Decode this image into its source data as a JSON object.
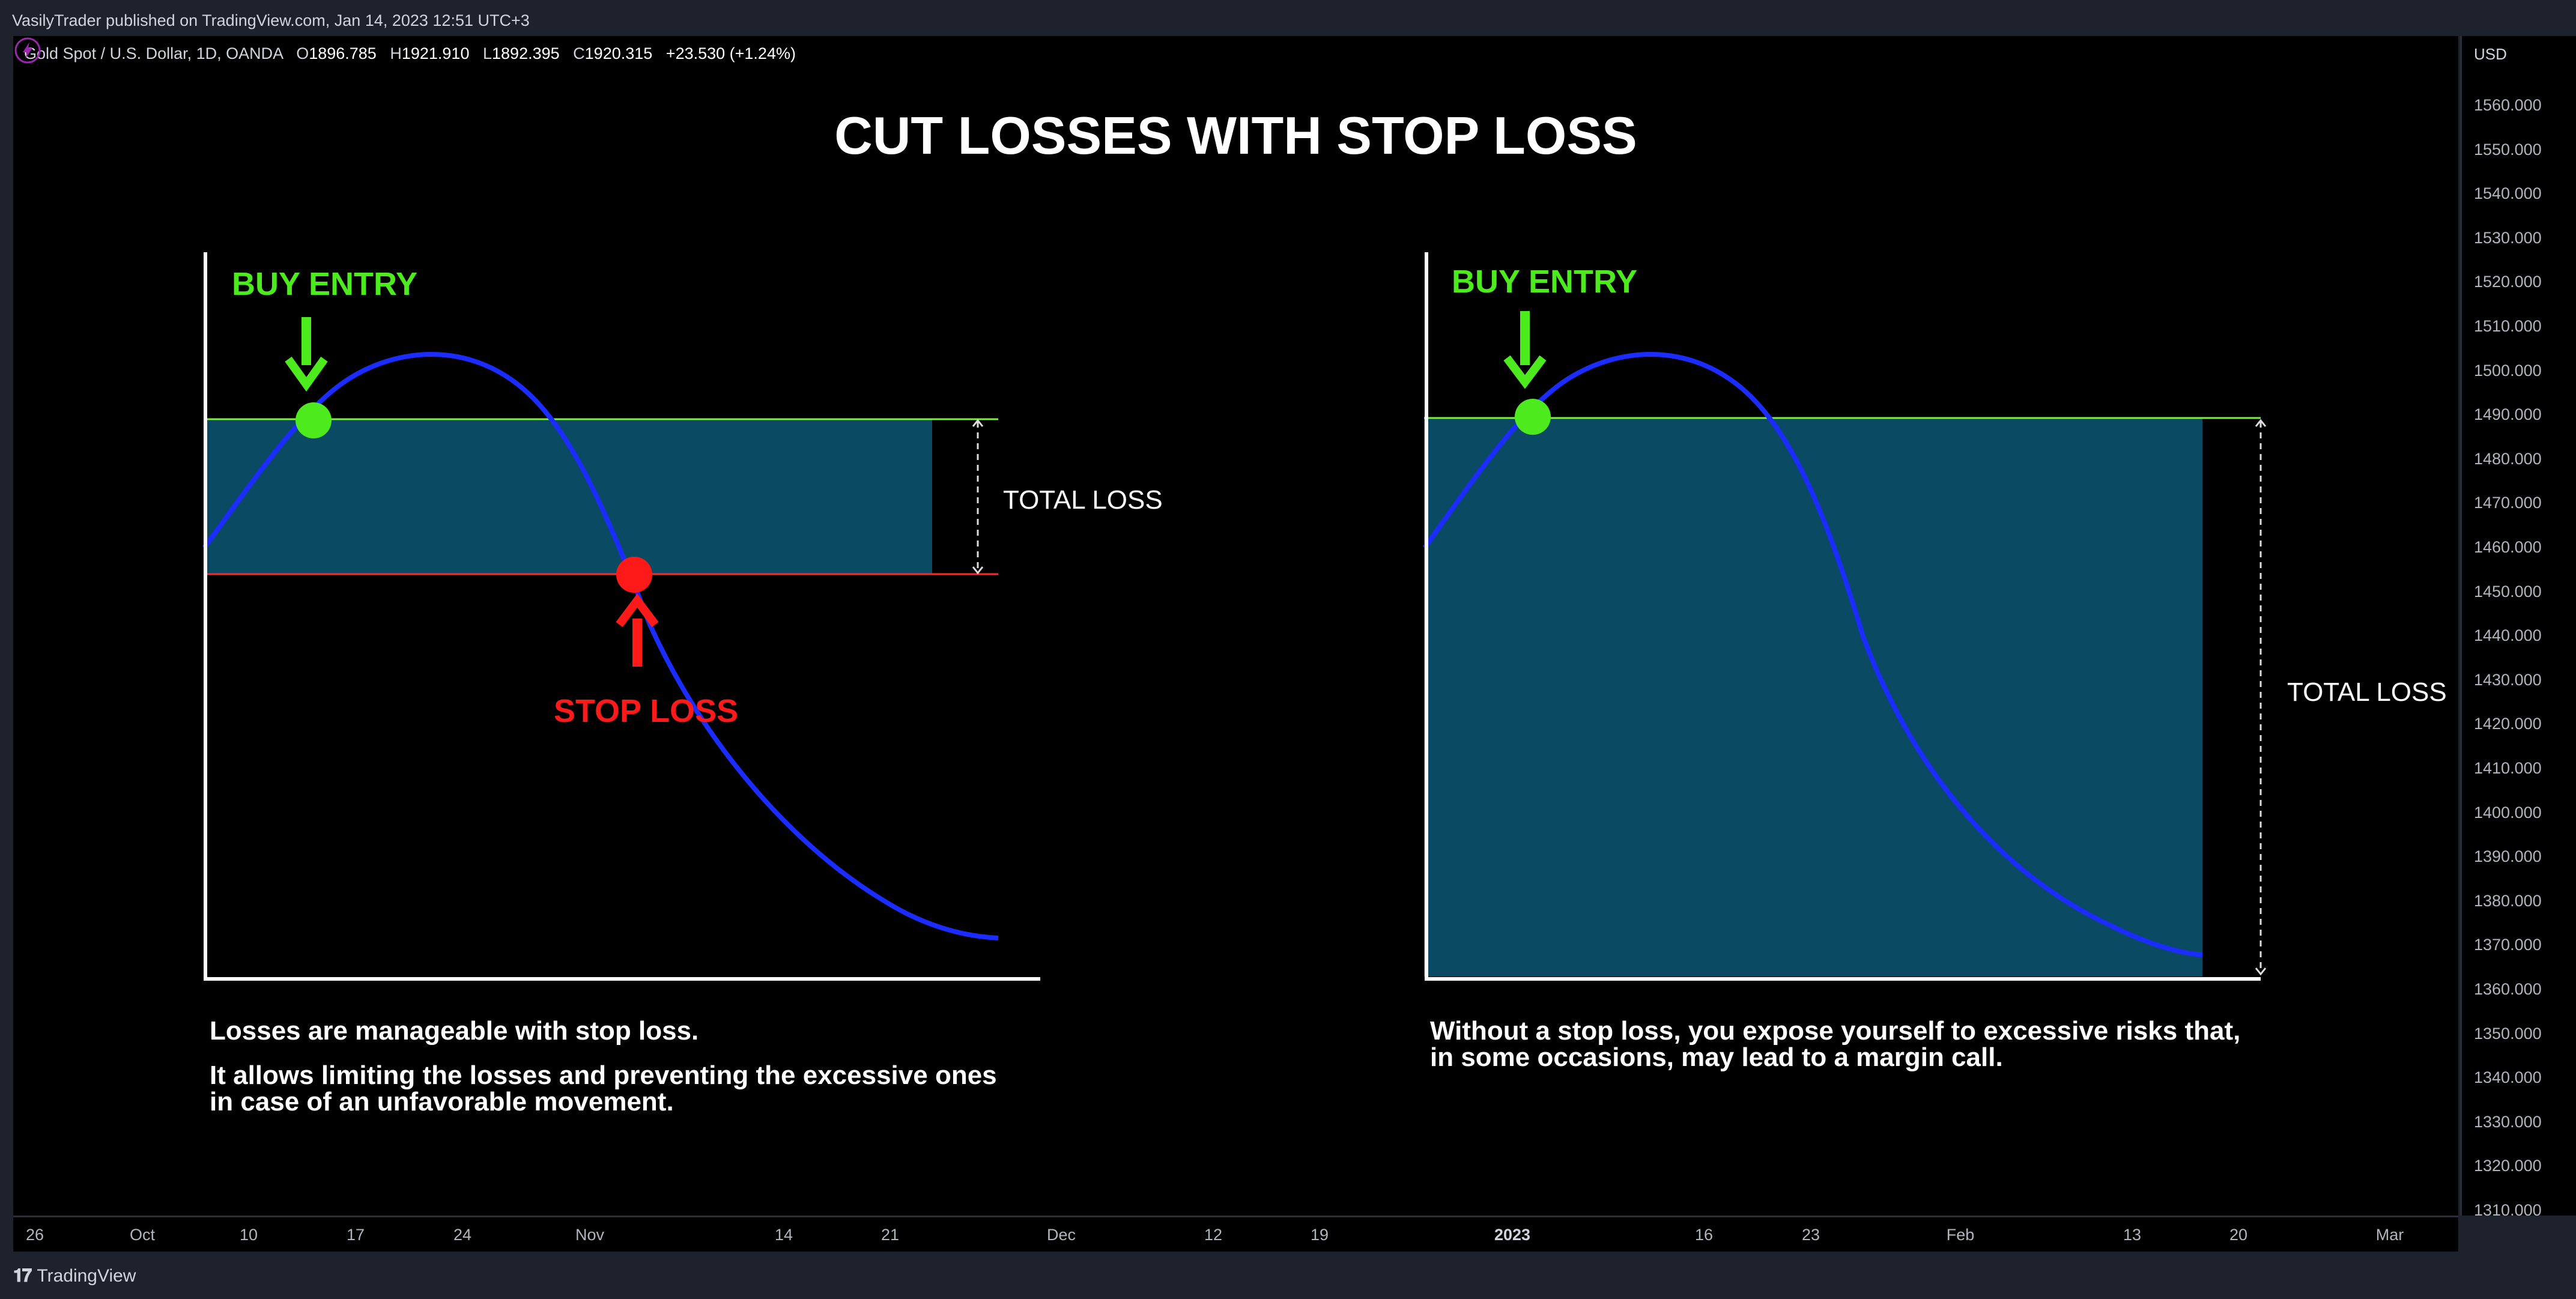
{
  "publish_line": "VasilyTrader published on TradingView.com, Jan 14, 2023 12:51 UTC+3",
  "legend": {
    "symbol": "Gold Spot / U.S. Dollar, 1D, OANDA",
    "o_label": "O",
    "o": "1896.785",
    "h_label": "H",
    "h": "1921.910",
    "l_label": "L",
    "l": "1892.395",
    "c_label": "C",
    "c": "1920.315",
    "change": "+23.530 (+1.24%)"
  },
  "title": "CUT LOSSES WITH STOP LOSS",
  "left_panel": {
    "buy_label": "BUY ENTRY",
    "stop_label": "STOP LOSS",
    "total_loss": "TOTAL LOSS",
    "caption_line1": "Losses are manageable with stop loss.",
    "caption_line2": "It allows limiting the losses and preventing the excessive ones",
    "caption_line3": "in case of an unfavorable movement."
  },
  "right_panel": {
    "buy_label": "BUY ENTRY",
    "total_loss": "TOTAL LOSS",
    "caption_line1": "Without a stop loss, you expose yourself to excessive risks that,",
    "caption_line2": "in some occasions, may lead to a margin call."
  },
  "price_scale": {
    "unit": "USD",
    "ticks": [
      "1560.000",
      "1550.000",
      "1540.000",
      "1530.000",
      "1520.000",
      "1510.000",
      "1500.000",
      "1490.000",
      "1480.000",
      "1470.000",
      "1460.000",
      "1450.000",
      "1440.000",
      "1430.000",
      "1420.000",
      "1410.000",
      "1400.000",
      "1390.000",
      "1380.000",
      "1370.000",
      "1360.000",
      "1350.000",
      "1340.000",
      "1330.000",
      "1320.000",
      "1310.000"
    ]
  },
  "time_axis": {
    "labels": [
      "26",
      "Oct",
      "10",
      "17",
      "24",
      "Nov",
      "14",
      "21",
      "Dec",
      "12",
      "19",
      "2023",
      "16",
      "23",
      "Feb",
      "13",
      "20",
      "Mar"
    ],
    "bold": [
      "2023"
    ]
  },
  "footer": {
    "brand": "TradingView"
  },
  "colors": {
    "buy": "#4dea1e",
    "stop": "#ff1a1a",
    "curve": "#1a2cff",
    "fill": "#0a4a62",
    "entry_line": "#7cf041"
  },
  "icons": {
    "flash": "lightning-icon",
    "logo": "tradingview-logo-icon"
  }
}
